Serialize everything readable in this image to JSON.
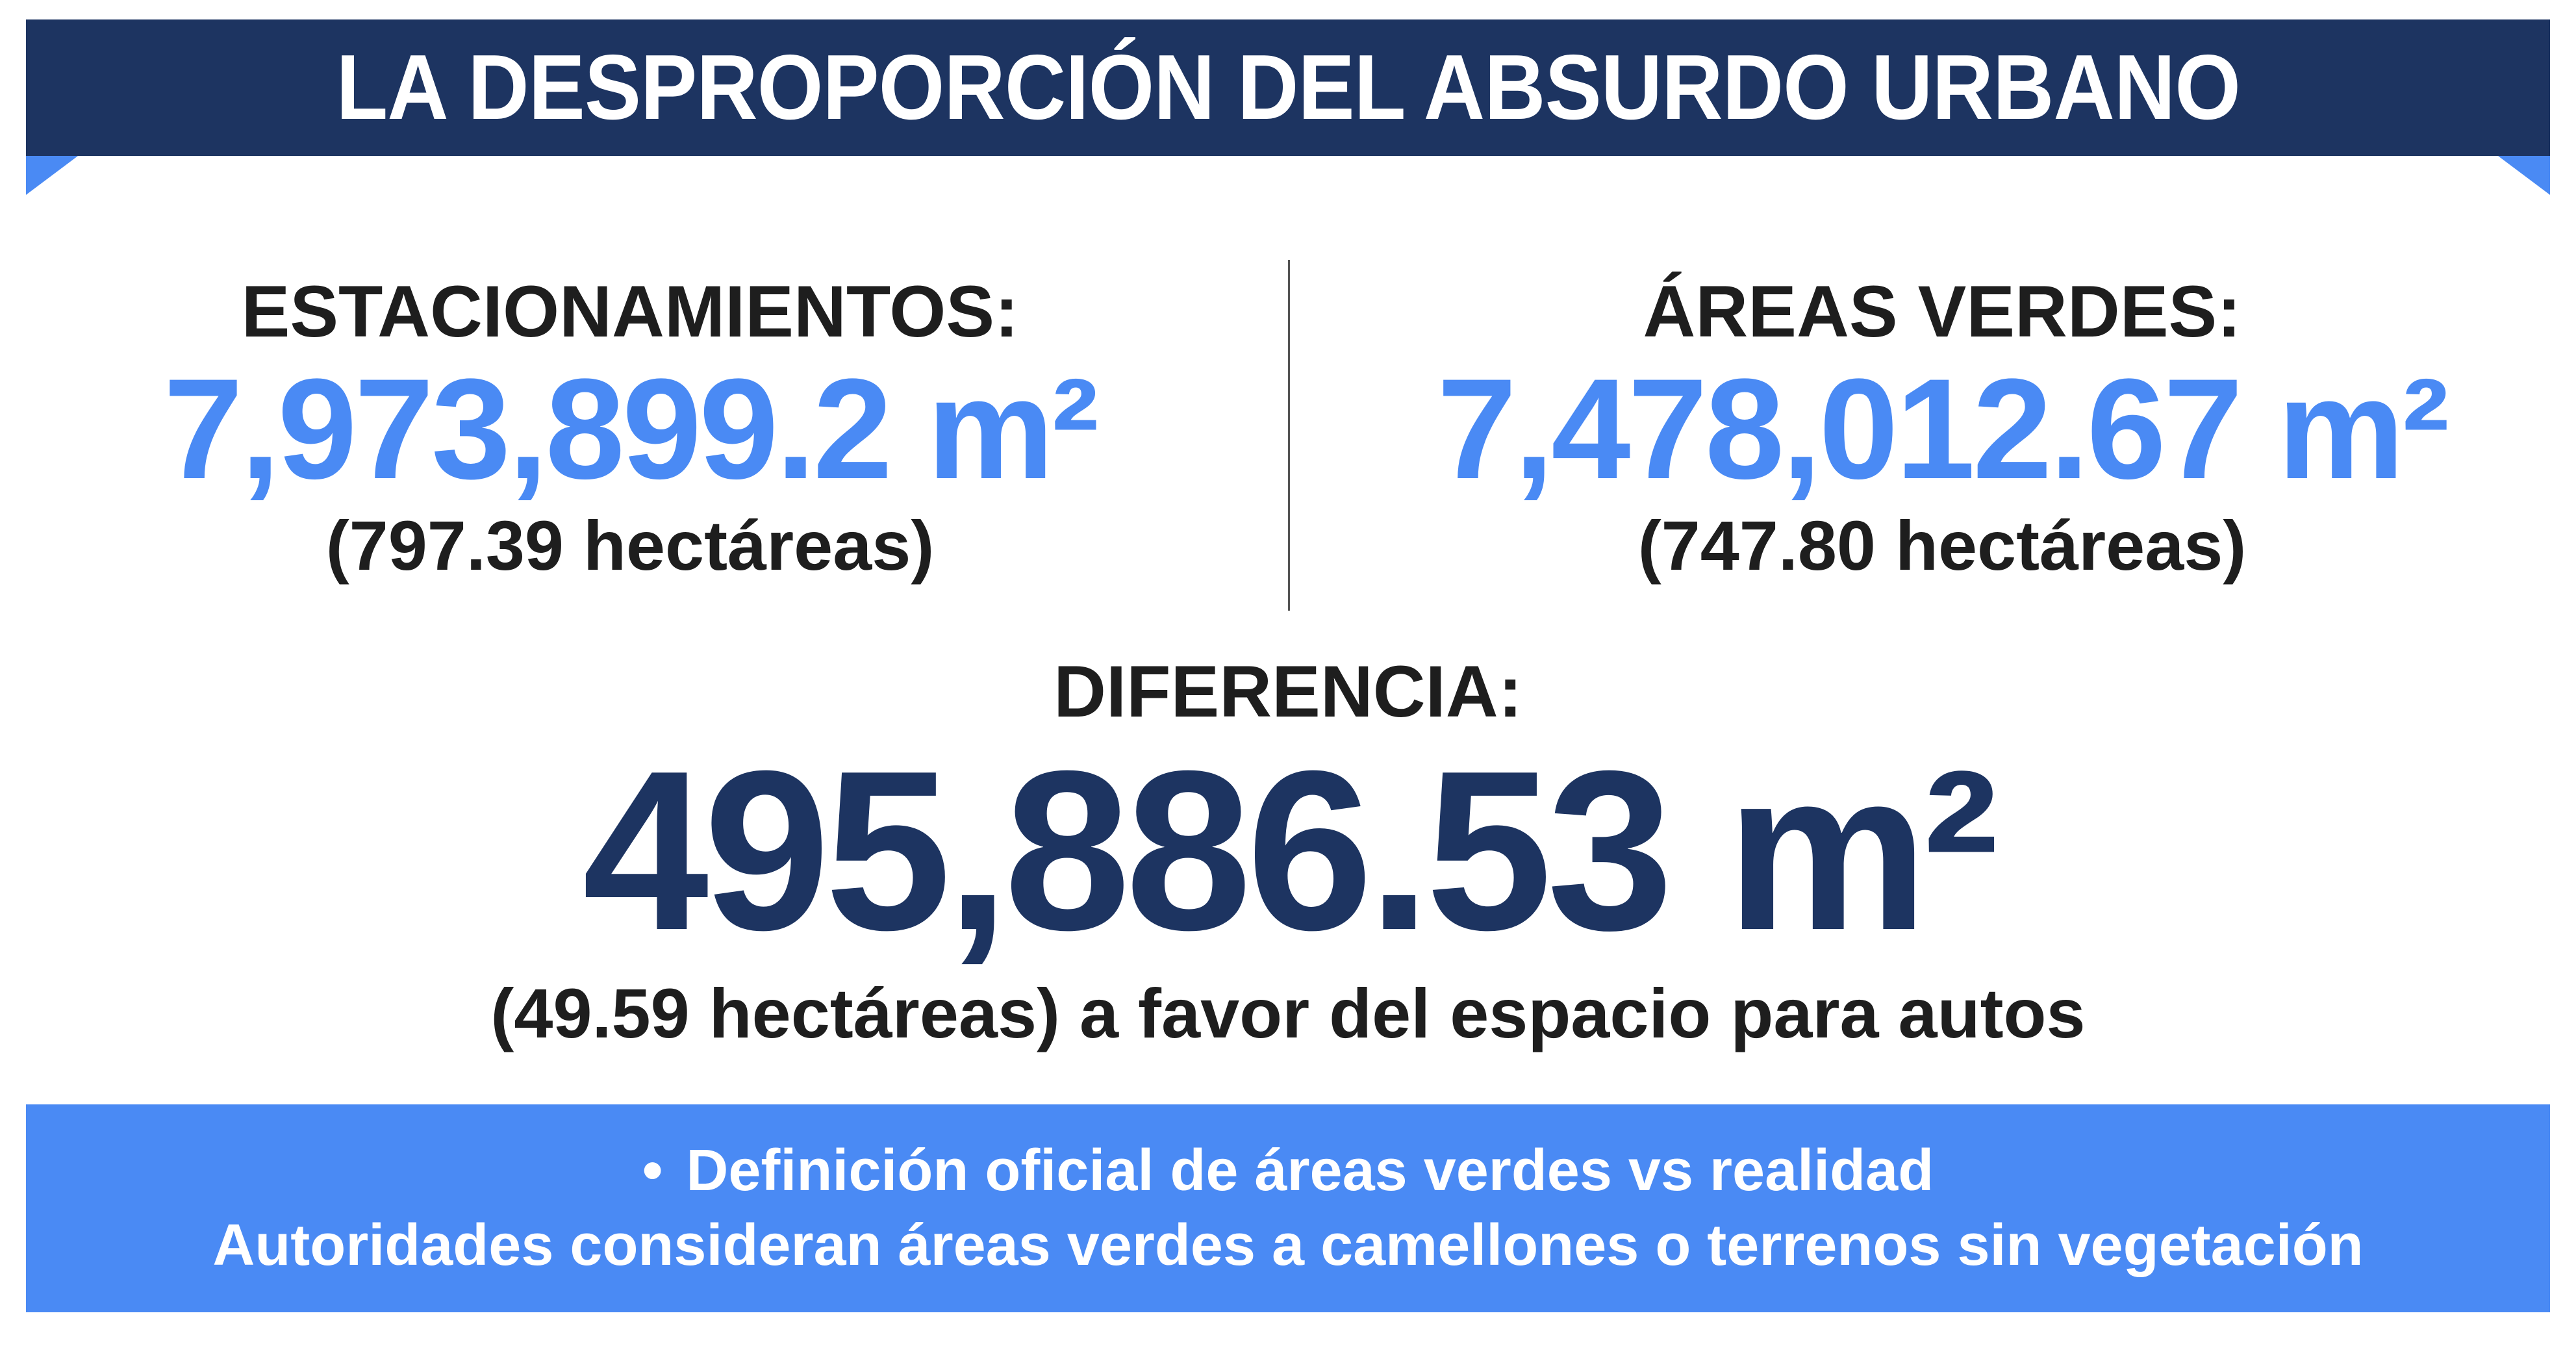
{
  "title": "LA DESPROPORCIÓN DEL ABSURDO URBANO",
  "left": {
    "label": "ESTACIONAMIENTOS:",
    "value": "7,973,899.2 m²",
    "hectares": "(797.39 hectáreas)"
  },
  "right": {
    "label": "ÁREAS VERDES:",
    "value": "7,478,012.67 m²",
    "hectares": "(747.80 hectáreas)"
  },
  "difference": {
    "label": "DIFERENCIA:",
    "value": "495,886.53 m²",
    "detail": "(49.59 hectáreas) a favor del espacio para autos"
  },
  "footer": {
    "bullet": "•",
    "line1": "Definición oficial de áreas verdes vs realidad",
    "line2": "Autoridades consideran áreas verdes a camellones o terrenos sin vegetación"
  },
  "colors": {
    "navy": "#1d3461",
    "blue": "#4a8af4",
    "text": "#1e1e1e"
  }
}
